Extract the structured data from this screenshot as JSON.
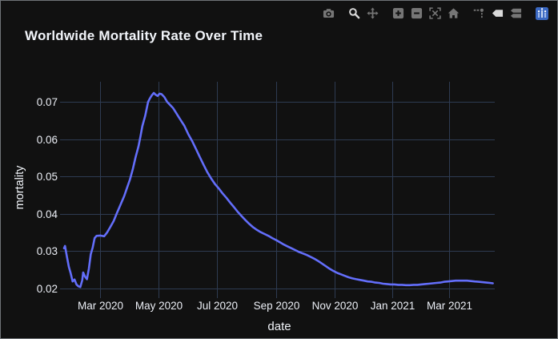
{
  "window": {
    "background": "#111111",
    "border_color": "#6f7377"
  },
  "modebar": {
    "icons": [
      {
        "name": "camera-icon",
        "active": false
      },
      {
        "name": "zoom-icon",
        "active": true
      },
      {
        "name": "pan-icon",
        "active": false
      },
      {
        "name": "zoom-in-icon",
        "active": false
      },
      {
        "name": "zoom-out-icon",
        "active": false
      },
      {
        "name": "autoscale-icon",
        "active": false
      },
      {
        "name": "home-icon",
        "active": false
      },
      {
        "name": "spikelines-icon",
        "active": false
      },
      {
        "name": "hover-closest-icon",
        "active": true
      },
      {
        "name": "hover-compare-icon",
        "active": false
      },
      {
        "name": "plotly-logo-icon",
        "active": false
      }
    ]
  },
  "chart_data": {
    "type": "line",
    "title": "Worldwide Mortality Rate Over Time",
    "xlabel": "date",
    "ylabel": "mortality",
    "legend": "none",
    "grid": true,
    "line_color": "#636efa",
    "grid_color": "#2e3b52",
    "text_color": "#ebeef5",
    "x_range": [
      "2020-01-23",
      "2021-04-18"
    ],
    "y_range": [
      0.0185,
      0.0754
    ],
    "x_ticks": [
      {
        "value": "2020-03-01",
        "label": "Mar 2020"
      },
      {
        "value": "2020-05-01",
        "label": "May 2020"
      },
      {
        "value": "2020-07-01",
        "label": "Jul 2020"
      },
      {
        "value": "2020-09-01",
        "label": "Sep 2020"
      },
      {
        "value": "2020-11-01",
        "label": "Nov 2020"
      },
      {
        "value": "2021-01-01",
        "label": "Jan 2021"
      },
      {
        "value": "2021-03-01",
        "label": "Mar 2021"
      }
    ],
    "y_ticks": [
      {
        "value": 0.02,
        "label": "0.02"
      },
      {
        "value": 0.03,
        "label": "0.03"
      },
      {
        "value": 0.04,
        "label": "0.04"
      },
      {
        "value": 0.05,
        "label": "0.05"
      },
      {
        "value": 0.06,
        "label": "0.06"
      },
      {
        "value": 0.07,
        "label": "0.07"
      }
    ],
    "series": [
      {
        "name": "mortality",
        "x": [
          "2020-01-23",
          "2020-01-24",
          "2020-01-26",
          "2020-01-28",
          "2020-01-30",
          "2020-02-01",
          "2020-02-03",
          "2020-02-05",
          "2020-02-07",
          "2020-02-09",
          "2020-02-11",
          "2020-02-12",
          "2020-02-14",
          "2020-02-16",
          "2020-02-18",
          "2020-02-20",
          "2020-02-22",
          "2020-02-24",
          "2020-02-26",
          "2020-03-01",
          "2020-03-05",
          "2020-03-08",
          "2020-03-11",
          "2020-03-15",
          "2020-03-18",
          "2020-03-22",
          "2020-03-26",
          "2020-03-29",
          "2020-04-01",
          "2020-04-04",
          "2020-04-07",
          "2020-04-10",
          "2020-04-12",
          "2020-04-14",
          "2020-04-17",
          "2020-04-20",
          "2020-04-22",
          "2020-04-24",
          "2020-04-26",
          "2020-04-28",
          "2020-04-30",
          "2020-05-02",
          "2020-05-04",
          "2020-05-07",
          "2020-05-10",
          "2020-05-13",
          "2020-05-16",
          "2020-05-19",
          "2020-05-22",
          "2020-05-25",
          "2020-05-28",
          "2020-06-01",
          "2020-06-05",
          "2020-06-09",
          "2020-06-13",
          "2020-06-17",
          "2020-06-21",
          "2020-06-25",
          "2020-06-29",
          "2020-07-03",
          "2020-07-07",
          "2020-07-11",
          "2020-07-15",
          "2020-07-19",
          "2020-07-23",
          "2020-07-27",
          "2020-07-31",
          "2020-08-04",
          "2020-08-08",
          "2020-08-12",
          "2020-08-16",
          "2020-08-20",
          "2020-08-24",
          "2020-08-28",
          "2020-09-01",
          "2020-09-05",
          "2020-09-09",
          "2020-09-13",
          "2020-09-17",
          "2020-09-21",
          "2020-09-25",
          "2020-09-29",
          "2020-10-03",
          "2020-10-07",
          "2020-10-11",
          "2020-10-15",
          "2020-10-19",
          "2020-10-23",
          "2020-10-27",
          "2020-10-31",
          "2020-11-04",
          "2020-11-08",
          "2020-11-12",
          "2020-11-16",
          "2020-11-20",
          "2020-11-24",
          "2020-11-28",
          "2020-12-02",
          "2020-12-06",
          "2020-12-10",
          "2020-12-14",
          "2020-12-18",
          "2020-12-22",
          "2020-12-26",
          "2020-12-30",
          "2021-01-03",
          "2021-01-07",
          "2021-01-11",
          "2021-01-15",
          "2021-01-19",
          "2021-01-23",
          "2021-01-27",
          "2021-01-31",
          "2021-02-04",
          "2021-02-08",
          "2021-02-12",
          "2021-02-16",
          "2021-02-20",
          "2021-02-24",
          "2021-02-28",
          "2021-03-04",
          "2021-03-08",
          "2021-03-12",
          "2021-03-16",
          "2021-03-20",
          "2021-03-24",
          "2021-03-28",
          "2021-04-01",
          "2021-04-05",
          "2021-04-09",
          "2021-04-13",
          "2021-04-16"
        ],
        "y": [
          0.0308,
          0.0314,
          0.0285,
          0.0258,
          0.024,
          0.0219,
          0.0224,
          0.0211,
          0.0206,
          0.0204,
          0.0222,
          0.0243,
          0.0232,
          0.0225,
          0.0253,
          0.0292,
          0.031,
          0.0335,
          0.0341,
          0.0342,
          0.034,
          0.035,
          0.0363,
          0.0381,
          0.04,
          0.0424,
          0.0448,
          0.047,
          0.0492,
          0.052,
          0.0553,
          0.0581,
          0.0607,
          0.0635,
          0.0663,
          0.07,
          0.071,
          0.0718,
          0.0724,
          0.0719,
          0.0716,
          0.0722,
          0.0721,
          0.0713,
          0.07,
          0.0692,
          0.0684,
          0.0672,
          0.066,
          0.0648,
          0.0636,
          0.0614,
          0.0596,
          0.0575,
          0.0553,
          0.0532,
          0.0512,
          0.0495,
          0.048,
          0.0468,
          0.0455,
          0.0443,
          0.043,
          0.0418,
          0.0405,
          0.0394,
          0.0383,
          0.0373,
          0.0364,
          0.0357,
          0.0351,
          0.0346,
          0.0341,
          0.0335,
          0.033,
          0.0324,
          0.0318,
          0.0313,
          0.0308,
          0.0303,
          0.0298,
          0.0294,
          0.029,
          0.0285,
          0.028,
          0.0274,
          0.0267,
          0.026,
          0.0253,
          0.0247,
          0.0242,
          0.0238,
          0.0234,
          0.023,
          0.0227,
          0.0225,
          0.0223,
          0.0221,
          0.0219,
          0.0218,
          0.0216,
          0.0215,
          0.0213,
          0.0212,
          0.0211,
          0.0211,
          0.021,
          0.021,
          0.0209,
          0.0209,
          0.021,
          0.021,
          0.0211,
          0.0212,
          0.0213,
          0.0214,
          0.0215,
          0.0216,
          0.0218,
          0.0219,
          0.022,
          0.0221,
          0.0221,
          0.0221,
          0.0221,
          0.022,
          0.0219,
          0.0218,
          0.0217,
          0.0216,
          0.0215,
          0.0214
        ]
      }
    ]
  }
}
